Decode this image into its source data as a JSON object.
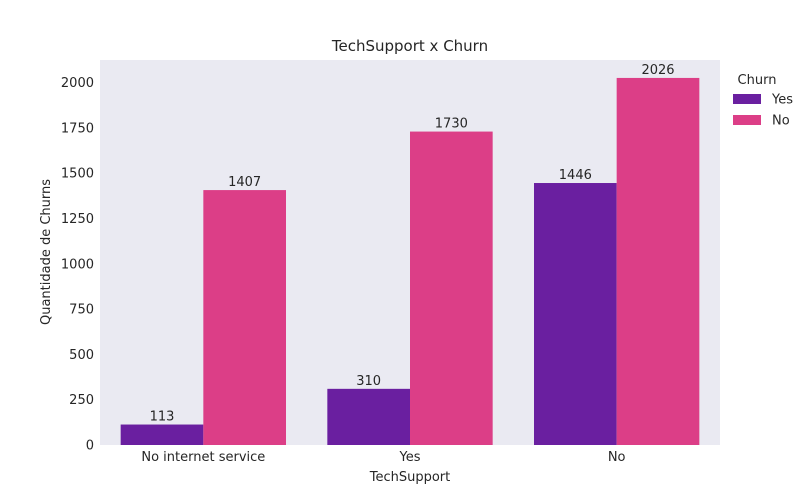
{
  "chart_data": {
    "type": "bar",
    "title": "TechSupport x Churn",
    "xlabel": "TechSupport",
    "ylabel": "Quantidade de Churns",
    "categories": [
      "No internet service",
      "Yes",
      "No"
    ],
    "series": [
      {
        "name": "Yes",
        "values": [
          113,
          310,
          1446
        ],
        "color": "#6a1fa0"
      },
      {
        "name": "No",
        "values": [
          1407,
          1730,
          2026
        ],
        "color": "#dc3e87"
      }
    ],
    "ylim": [
      0,
      2125
    ],
    "yticks": [
      0,
      250,
      500,
      750,
      1000,
      1250,
      1500,
      1750,
      2000
    ],
    "grid": false,
    "background": "#eaeaf2",
    "legend": {
      "title": "Churn",
      "placement": "right"
    }
  }
}
